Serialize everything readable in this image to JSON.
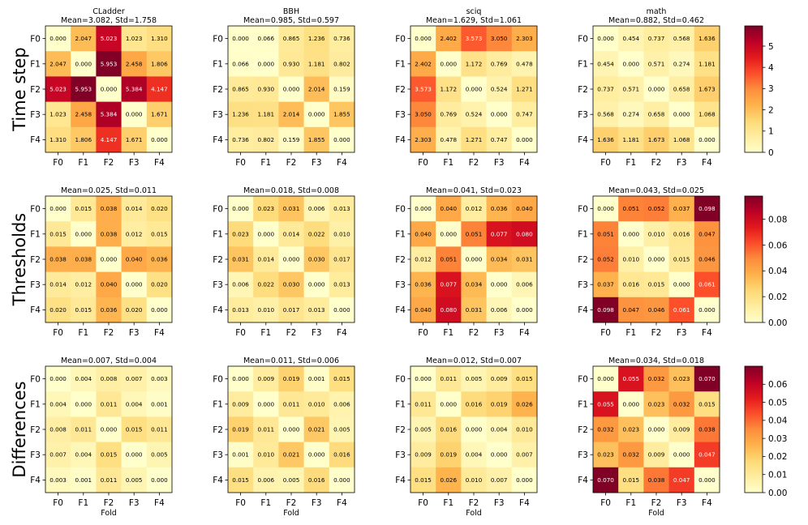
{
  "chart_data": {
    "type": "heatmap",
    "colormap": "YlOrRd",
    "xlabel": "Fold",
    "labels": [
      "F0",
      "F1",
      "F2",
      "F3",
      "F4"
    ],
    "rows": [
      {
        "row_label": "Time step",
        "vmax": 5.953,
        "colorbar_ticks": [
          "0",
          "1",
          "2",
          "3",
          "4",
          "5"
        ],
        "colorbar_tick_values": [
          0,
          1,
          2,
          3,
          4,
          5
        ],
        "panels": [
          {
            "name": "CLadder",
            "title": "CLadder",
            "subtitle": "Mean=3.082, Std=1.758",
            "matrix": [
              [
                "0.000",
                "2.047",
                "5.023",
                "1.023",
                "1.310"
              ],
              [
                "2.047",
                "0.000",
                "5.953",
                "2.458",
                "1.806"
              ],
              [
                "5.023",
                "5.953",
                "0.000",
                "5.384",
                "4.147"
              ],
              [
                "1.023",
                "2.458",
                "5.384",
                "0.000",
                "1.671"
              ],
              [
                "1.310",
                "1.806",
                "4.147",
                "1.671",
                "0.000"
              ]
            ]
          },
          {
            "name": "BBH",
            "title": "BBH",
            "subtitle": "Mean=0.985, Std=0.597",
            "matrix": [
              [
                "0.000",
                "0.066",
                "0.865",
                "1.236",
                "0.736"
              ],
              [
                "0.066",
                "0.000",
                "0.930",
                "1.181",
                "0.802"
              ],
              [
                "0.865",
                "0.930",
                "0.000",
                "2.014",
                "0.159"
              ],
              [
                "1.236",
                "1.181",
                "2.014",
                "0.000",
                "1.855"
              ],
              [
                "0.736",
                "0.802",
                "0.159",
                "1.855",
                "0.000"
              ]
            ]
          },
          {
            "name": "sciq",
            "title": "sciq",
            "subtitle": "Mean=1.629, Std=1.061",
            "matrix": [
              [
                "0.000",
                "2.402",
                "3.573",
                "3.050",
                "2.303"
              ],
              [
                "2.402",
                "0.000",
                "1.172",
                "0.769",
                "0.478"
              ],
              [
                "3.573",
                "1.172",
                "0.000",
                "0.524",
                "1.271"
              ],
              [
                "3.050",
                "0.769",
                "0.524",
                "0.000",
                "0.747"
              ],
              [
                "2.303",
                "0.478",
                "1.271",
                "0.747",
                "0.000"
              ]
            ]
          },
          {
            "name": "math",
            "title": "math",
            "subtitle": "Mean=0.882, Std=0.462",
            "matrix": [
              [
                "0.000",
                "0.454",
                "0.737",
                "0.568",
                "1.636"
              ],
              [
                "0.454",
                "0.000",
                "0.571",
                "0.274",
                "1.181"
              ],
              [
                "0.737",
                "0.571",
                "0.000",
                "0.658",
                "1.673"
              ],
              [
                "0.568",
                "0.274",
                "0.658",
                "0.000",
                "1.068"
              ],
              [
                "1.636",
                "1.181",
                "1.673",
                "1.068",
                "0.000"
              ]
            ]
          }
        ]
      },
      {
        "row_label": "Thresholds",
        "vmax": 0.098,
        "colorbar_ticks": [
          "0.00",
          "0.02",
          "0.04",
          "0.06",
          "0.08"
        ],
        "colorbar_tick_values": [
          0,
          0.02,
          0.04,
          0.06,
          0.08
        ],
        "panels": [
          {
            "name": "CLadder",
            "title": "",
            "subtitle": "Mean=0.025, Std=0.011",
            "matrix": [
              [
                "0.000",
                "0.015",
                "0.038",
                "0.014",
                "0.020"
              ],
              [
                "0.015",
                "0.000",
                "0.038",
                "0.012",
                "0.015"
              ],
              [
                "0.038",
                "0.038",
                "0.000",
                "0.040",
                "0.036"
              ],
              [
                "0.014",
                "0.012",
                "0.040",
                "0.000",
                "0.020"
              ],
              [
                "0.020",
                "0.015",
                "0.036",
                "0.020",
                "0.000"
              ]
            ]
          },
          {
            "name": "BBH",
            "title": "",
            "subtitle": "Mean=0.018, Std=0.008",
            "matrix": [
              [
                "0.000",
                "0.023",
                "0.031",
                "0.006",
                "0.013"
              ],
              [
                "0.023",
                "0.000",
                "0.014",
                "0.022",
                "0.010"
              ],
              [
                "0.031",
                "0.014",
                "0.000",
                "0.030",
                "0.017"
              ],
              [
                "0.006",
                "0.022",
                "0.030",
                "0.000",
                "0.013"
              ],
              [
                "0.013",
                "0.010",
                "0.017",
                "0.013",
                "0.000"
              ]
            ]
          },
          {
            "name": "sciq",
            "title": "",
            "subtitle": "Mean=0.041, Std=0.023",
            "matrix": [
              [
                "0.000",
                "0.040",
                "0.012",
                "0.036",
                "0.040"
              ],
              [
                "0.040",
                "0.000",
                "0.051",
                "0.077",
                "0.080"
              ],
              [
                "0.012",
                "0.051",
                "0.000",
                "0.034",
                "0.031"
              ],
              [
                "0.036",
                "0.077",
                "0.034",
                "0.000",
                "0.006"
              ],
              [
                "0.040",
                "0.080",
                "0.031",
                "0.006",
                "0.000"
              ]
            ]
          },
          {
            "name": "math",
            "title": "",
            "subtitle": "Mean=0.043, Std=0.025",
            "matrix": [
              [
                "0.000",
                "0.051",
                "0.052",
                "0.037",
                "0.098"
              ],
              [
                "0.051",
                "0.000",
                "0.010",
                "0.016",
                "0.047"
              ],
              [
                "0.052",
                "0.010",
                "0.000",
                "0.015",
                "0.046"
              ],
              [
                "0.037",
                "0.016",
                "0.015",
                "0.000",
                "0.061"
              ],
              [
                "0.098",
                "0.047",
                "0.046",
                "0.061",
                "0.000"
              ]
            ]
          }
        ]
      },
      {
        "row_label": "Differences",
        "vmax": 0.07,
        "colorbar_ticks": [
          "0.00",
          "0.01",
          "0.02",
          "0.03",
          "0.04",
          "0.05",
          "0.06"
        ],
        "colorbar_tick_values": [
          0,
          0.01,
          0.02,
          0.03,
          0.04,
          0.05,
          0.06
        ],
        "panels": [
          {
            "name": "CLadder",
            "title": "",
            "subtitle": "Mean=0.007, Std=0.004",
            "matrix": [
              [
                "0.000",
                "0.004",
                "0.008",
                "0.007",
                "0.003"
              ],
              [
                "0.004",
                "0.000",
                "0.011",
                "0.004",
                "0.001"
              ],
              [
                "0.008",
                "0.011",
                "0.000",
                "0.015",
                "0.011"
              ],
              [
                "0.007",
                "0.004",
                "0.015",
                "0.000",
                "0.005"
              ],
              [
                "0.003",
                "0.001",
                "0.011",
                "0.005",
                "0.000"
              ]
            ]
          },
          {
            "name": "BBH",
            "title": "",
            "subtitle": "Mean=0.011, Std=0.006",
            "matrix": [
              [
                "0.000",
                "0.009",
                "0.019",
                "0.001",
                "0.015"
              ],
              [
                "0.009",
                "0.000",
                "0.011",
                "0.010",
                "0.006"
              ],
              [
                "0.019",
                "0.011",
                "0.000",
                "0.021",
                "0.005"
              ],
              [
                "0.001",
                "0.010",
                "0.021",
                "0.000",
                "0.016"
              ],
              [
                "0.015",
                "0.006",
                "0.005",
                "0.016",
                "0.000"
              ]
            ]
          },
          {
            "name": "sciq",
            "title": "",
            "subtitle": "Mean=0.012, Std=0.007",
            "matrix": [
              [
                "0.000",
                "0.011",
                "0.005",
                "0.009",
                "0.015"
              ],
              [
                "0.011",
                "0.000",
                "0.016",
                "0.019",
                "0.026"
              ],
              [
                "0.005",
                "0.016",
                "0.000",
                "0.004",
                "0.010"
              ],
              [
                "0.009",
                "0.019",
                "0.004",
                "0.000",
                "0.007"
              ],
              [
                "0.015",
                "0.026",
                "0.010",
                "0.007",
                "0.000"
              ]
            ]
          },
          {
            "name": "math",
            "title": "",
            "subtitle": "Mean=0.034, Std=0.018",
            "matrix": [
              [
                "0.000",
                "0.055",
                "0.032",
                "0.023",
                "0.070"
              ],
              [
                "0.055",
                "0.000",
                "0.023",
                "0.032",
                "0.015"
              ],
              [
                "0.032",
                "0.023",
                "0.000",
                "0.009",
                "0.038"
              ],
              [
                "0.023",
                "0.032",
                "0.009",
                "0.000",
                "0.047"
              ],
              [
                "0.070",
                "0.015",
                "0.038",
                "0.047",
                "0.000"
              ]
            ]
          }
        ]
      }
    ]
  }
}
